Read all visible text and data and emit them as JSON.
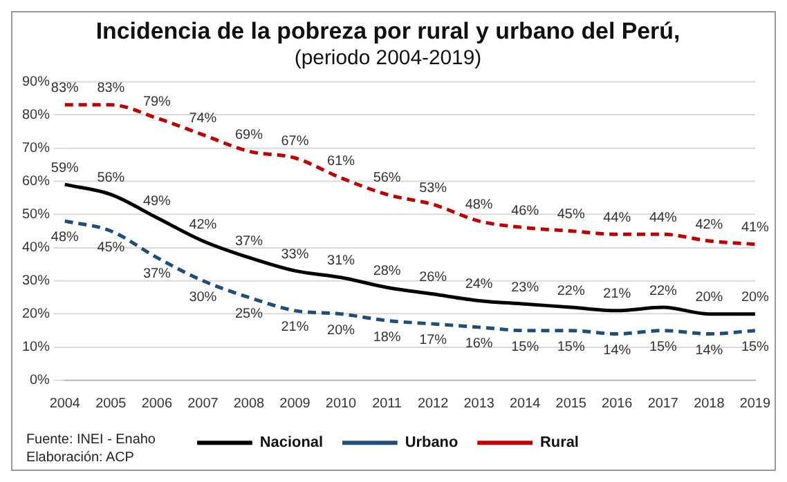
{
  "chart_data": {
    "type": "line",
    "title": "Incidencia de la pobreza por rural y urbano del Perú,",
    "subtitle": "(periodo 2004-2019)",
    "categories": [
      "2004",
      "2005",
      "2006",
      "2007",
      "2008",
      "2009",
      "2010",
      "2011",
      "2012",
      "2013",
      "2014",
      "2015",
      "2016",
      "2017",
      "2018",
      "2019"
    ],
    "series": [
      {
        "name": "Nacional",
        "color": "#000000",
        "line_style": "solid",
        "values": [
          59,
          56,
          49,
          42,
          37,
          33,
          31,
          28,
          26,
          24,
          23,
          22,
          21,
          22,
          20,
          20
        ],
        "value_labels": [
          "59%",
          "56%",
          "49%",
          "42%",
          "37%",
          "33%",
          "31%",
          "28%",
          "26%",
          "24%",
          "23%",
          "22%",
          "21%",
          "22%",
          "20%",
          "20%"
        ]
      },
      {
        "name": "Urbano",
        "color": "#1f4e79",
        "line_style": "dashed",
        "values": [
          48,
          45,
          37,
          30,
          25,
          21,
          20,
          18,
          17,
          16,
          15,
          15,
          14,
          15,
          14,
          15
        ],
        "value_labels": [
          "48%",
          "45%",
          "37%",
          "30%",
          "25%",
          "21%",
          "20%",
          "18%",
          "17%",
          "16%",
          "15%",
          "15%",
          "14%",
          "15%",
          "14%",
          "15%"
        ]
      },
      {
        "name": "Rural",
        "color": "#c00000",
        "line_style": "dashed",
        "values": [
          83,
          83,
          79,
          74,
          69,
          67,
          61,
          56,
          53,
          48,
          46,
          45,
          44,
          44,
          42,
          41
        ],
        "value_labels": [
          "83%",
          "83%",
          "79%",
          "74%",
          "69%",
          "67%",
          "61%",
          "56%",
          "53%",
          "48%",
          "46%",
          "45%",
          "44%",
          "44%",
          "42%",
          "41%"
        ]
      }
    ],
    "ylim": [
      0,
      90
    ],
    "yticks": [
      {
        "value": 0,
        "label": "0%"
      },
      {
        "value": 10,
        "label": "10%"
      },
      {
        "value": 20,
        "label": "20%"
      },
      {
        "value": 30,
        "label": "30%"
      },
      {
        "value": 40,
        "label": "40%"
      },
      {
        "value": 50,
        "label": "50%"
      },
      {
        "value": 60,
        "label": "60%"
      },
      {
        "value": 70,
        "label": "70%"
      },
      {
        "value": 80,
        "label": "80%"
      },
      {
        "value": 90,
        "label": "90%"
      }
    ],
    "grid": "y",
    "legend": "bottom",
    "marker": "none",
    "annotations": [
      "Fuente: INEI - Enaho",
      "Elaboración: ACP"
    ]
  }
}
